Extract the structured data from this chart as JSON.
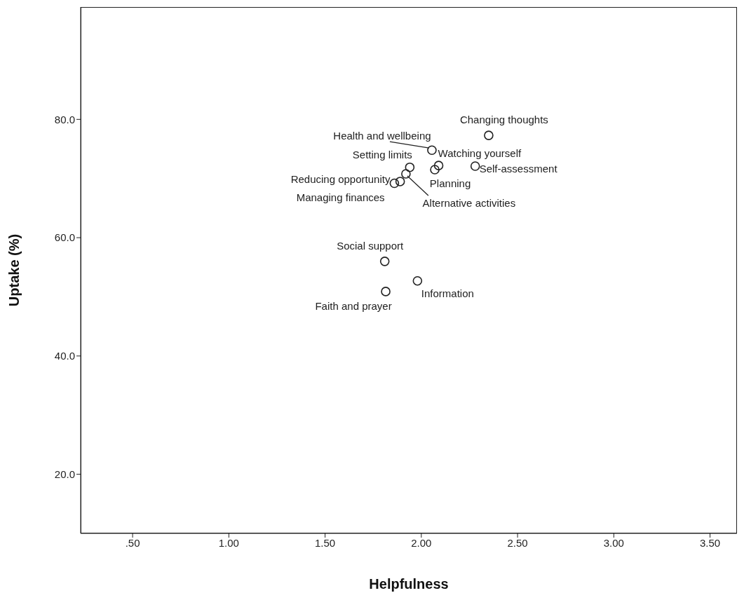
{
  "chart_data": {
    "type": "scatter",
    "xlabel": "Helpfulness",
    "ylabel": "Uptake (%)",
    "x": [
      2.35,
      2.055,
      1.94,
      2.09,
      2.07,
      2.28,
      1.92,
      1.89,
      1.86,
      1.81,
      1.98,
      1.815
    ],
    "values": [
      77.3,
      74.8,
      71.9,
      72.2,
      71.5,
      72.1,
      70.8,
      69.5,
      69.2,
      56.0,
      52.7,
      50.9
    ],
    "color": "#222222",
    "marker": "circle",
    "grid": false,
    "legend": false,
    "xlim": [
      0.23,
      3.64
    ],
    "xticks": [
      {
        "value": 0.5,
        "label": ".50"
      },
      {
        "value": 1,
        "label": "1.00"
      },
      {
        "value": 1.5,
        "label": "1.50"
      },
      {
        "value": 2,
        "label": "2.00"
      },
      {
        "value": 2.5,
        "label": "2.50"
      },
      {
        "value": 3,
        "label": "3.00"
      },
      {
        "value": 3.5,
        "label": "3.50"
      }
    ],
    "ylim": [
      10,
      99
    ],
    "yticks": [
      {
        "value": 20,
        "label": "20.0"
      },
      {
        "value": 40,
        "label": "40.0"
      },
      {
        "value": 60,
        "label": "60.0"
      },
      {
        "value": 80,
        "label": "80.0"
      }
    ],
    "annotations": [
      {
        "text": "Changing thoughts",
        "x": 2.35,
        "y": 77.3
      },
      {
        "text": "Health and wellbeing",
        "x": 2.055,
        "y": 74.8
      },
      {
        "text": "Setting limits",
        "x": 1.94,
        "y": 71.9
      },
      {
        "text": "Watching yourself",
        "x": 2.09,
        "y": 72.2
      },
      {
        "text": "Planning",
        "x": 2.07,
        "y": 71.5
      },
      {
        "text": "Self-assessment",
        "x": 2.28,
        "y": 72.1
      },
      {
        "text": "Alternative activities",
        "x": 1.92,
        "y": 70.8
      },
      {
        "text": "Managing finances",
        "x": 1.89,
        "y": 69.5
      },
      {
        "text": "Reducing opportunity",
        "x": 1.86,
        "y": 69.2
      },
      {
        "text": "Social support",
        "x": 1.81,
        "y": 56.0
      },
      {
        "text": "Information",
        "x": 1.98,
        "y": 52.7
      },
      {
        "text": "Faith and prayer",
        "x": 1.815,
        "y": 50.9
      }
    ]
  }
}
